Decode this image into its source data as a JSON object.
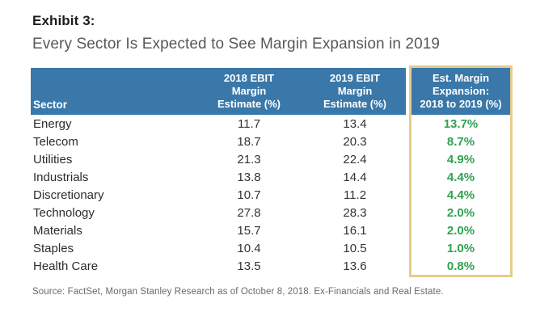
{
  "exhibit": {
    "label": "Exhibit 3:",
    "subtitle": "Every Sector Is Expected to See Margin Expansion in 2019",
    "source": "Source: FactSet, Morgan Stanley Research as of October 8, 2018. Ex-Financials and Real Estate."
  },
  "colors": {
    "header_blue": "#3a78a9",
    "highlight_border_gold": "#e4cd8d",
    "positive_green": "#2fa251",
    "subtitle_gray": "#57585a"
  },
  "table": {
    "headers": {
      "sector": "Sector",
      "ebit2018": {
        "lines": [
          "2018 EBIT",
          "Margin",
          "Estimate (%)"
        ]
      },
      "ebit2019": {
        "lines": [
          "2019 EBIT",
          "Margin",
          "Estimate (%)"
        ]
      },
      "expansion": {
        "lines": [
          "Est. Margin",
          "Expansion:",
          "2018 to 2019 (%)"
        ]
      }
    },
    "rows": [
      {
        "sector": "Energy",
        "ebit2018": "11.7",
        "ebit2019": "13.4",
        "expansion": "13.7%"
      },
      {
        "sector": "Telecom",
        "ebit2018": "18.7",
        "ebit2019": "20.3",
        "expansion": "8.7%"
      },
      {
        "sector": "Utilities",
        "ebit2018": "21.3",
        "ebit2019": "22.4",
        "expansion": "4.9%"
      },
      {
        "sector": "Industrials",
        "ebit2018": "13.8",
        "ebit2019": "14.4",
        "expansion": "4.4%"
      },
      {
        "sector": "Discretionary",
        "ebit2018": "10.7",
        "ebit2019": "11.2",
        "expansion": "4.4%"
      },
      {
        "sector": "Technology",
        "ebit2018": "27.8",
        "ebit2019": "28.3",
        "expansion": "2.0%"
      },
      {
        "sector": "Materials",
        "ebit2018": "15.7",
        "ebit2019": "16.1",
        "expansion": "2.0%"
      },
      {
        "sector": "Staples",
        "ebit2018": "10.4",
        "ebit2019": "10.5",
        "expansion": "1.0%"
      },
      {
        "sector": "Health Care",
        "ebit2018": "13.5",
        "ebit2019": "13.6",
        "expansion": "0.8%"
      }
    ]
  },
  "chart_data": {
    "type": "table",
    "title": "Exhibit 3: Every Sector Is Expected to See Margin Expansion in 2019",
    "columns": [
      "Sector",
      "2018 EBIT Margin Estimate (%)",
      "2019 EBIT Margin Estimate (%)",
      "Est. Margin Expansion: 2018 to 2019 (%)"
    ],
    "rows": [
      [
        "Energy",
        11.7,
        13.4,
        13.7
      ],
      [
        "Telecom",
        18.7,
        20.3,
        8.7
      ],
      [
        "Utilities",
        21.3,
        22.4,
        4.9
      ],
      [
        "Industrials",
        13.8,
        14.4,
        4.4
      ],
      [
        "Discretionary",
        10.7,
        11.2,
        4.4
      ],
      [
        "Technology",
        27.8,
        28.3,
        2.0
      ],
      [
        "Materials",
        15.7,
        16.1,
        2.0
      ],
      [
        "Staples",
        10.4,
        10.5,
        1.0
      ],
      [
        "Health Care",
        13.5,
        13.6,
        0.8
      ]
    ],
    "notes": "Expansion column values displayed as percents in green; column highlighted with gold border",
    "source": "Source: FactSet, Morgan Stanley Research as of October 8, 2018. Ex-Financials and Real Estate."
  }
}
